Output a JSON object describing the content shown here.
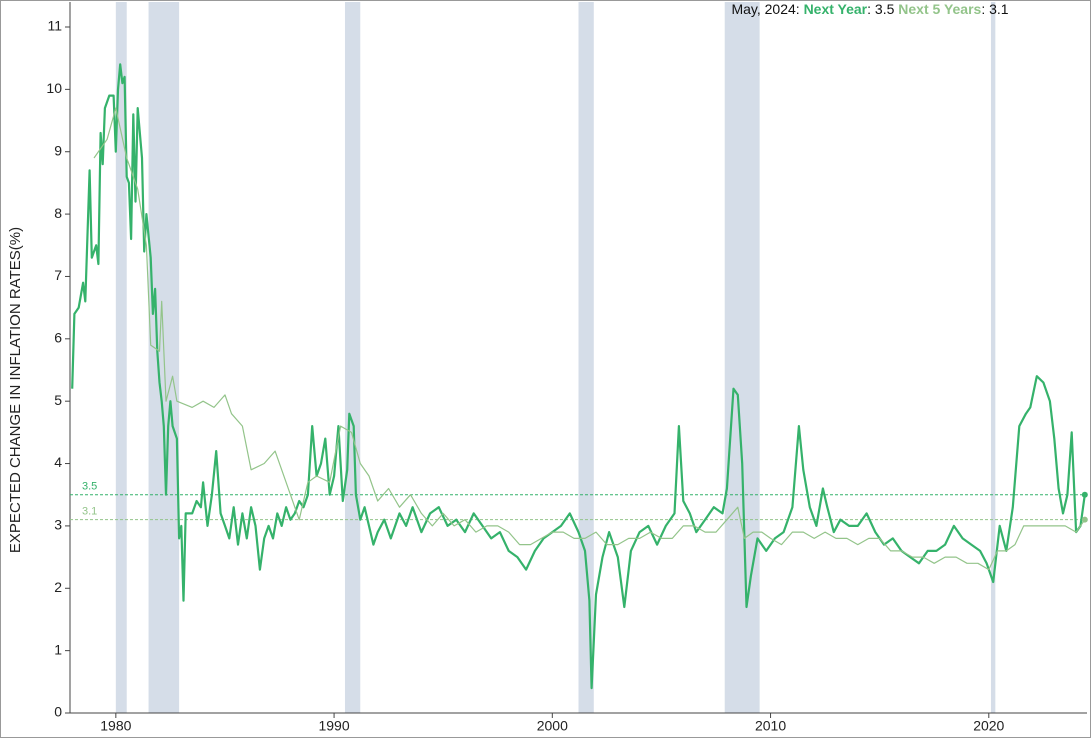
{
  "chart_data": {
    "type": "line",
    "y_label": "EXPECTED CHANGE IN INFLATION RATES(%)",
    "annotation": [
      {
        "text": "May, 2024: ",
        "color": "#111111"
      },
      {
        "text": "Next Year",
        "color": "#35b26b",
        "bold": true
      },
      {
        "text": ": 3.5 ",
        "color": "#111111"
      },
      {
        "text": "Next 5 Years",
        "color": "#93c48a",
        "bold": true
      },
      {
        "text": ": 3.1",
        "color": "#111111"
      }
    ],
    "xlim": [
      1977.9,
      2024.5
    ],
    "xticks": [
      1980,
      1990,
      2000,
      2010,
      2020
    ],
    "ylim": [
      0,
      11
    ],
    "yticks": [
      0,
      1,
      2,
      3,
      4,
      5,
      6,
      7,
      8,
      9,
      10,
      11
    ],
    "recessions": [
      [
        1980.0,
        1980.5
      ],
      [
        1981.5,
        1982.9
      ],
      [
        1990.5,
        1991.2
      ],
      [
        2001.2,
        2001.9
      ],
      [
        2007.9,
        2009.5
      ],
      [
        2020.1,
        2020.3
      ]
    ],
    "recession_color": "#d5dde8",
    "reference_lines": [
      {
        "value": 3.5,
        "color": "#35b26b"
      },
      {
        "value": 3.1,
        "color": "#93c48a"
      }
    ],
    "series": [
      {
        "name": "Next Year",
        "color": "#35b26b",
        "width": 2.2,
        "x": [
          1978.0,
          1978.1,
          1978.3,
          1978.5,
          1978.6,
          1978.8,
          1978.9,
          1979.1,
          1979.2,
          1979.3,
          1979.4,
          1979.5,
          1979.7,
          1979.9,
          1980.0,
          1980.1,
          1980.2,
          1980.3,
          1980.4,
          1980.5,
          1980.6,
          1980.7,
          1980.8,
          1980.9,
          1981.0,
          1981.2,
          1981.3,
          1981.4,
          1981.6,
          1981.7,
          1981.8,
          1981.9,
          1982.0,
          1982.1,
          1982.2,
          1982.3,
          1982.4,
          1982.5,
          1982.6,
          1982.8,
          1982.9,
          1983.0,
          1983.1,
          1983.2,
          1983.5,
          1983.7,
          1983.9,
          1984.0,
          1984.2,
          1984.4,
          1984.6,
          1984.8,
          1985.0,
          1985.2,
          1985.4,
          1985.6,
          1985.8,
          1986.0,
          1986.2,
          1986.4,
          1986.6,
          1986.8,
          1987.0,
          1987.2,
          1987.4,
          1987.6,
          1987.8,
          1988.0,
          1988.2,
          1988.4,
          1988.6,
          1988.8,
          1989.0,
          1989.2,
          1989.4,
          1989.6,
          1989.8,
          1990.0,
          1990.2,
          1990.4,
          1990.6,
          1990.7,
          1990.9,
          1991.0,
          1991.2,
          1991.4,
          1991.6,
          1991.8,
          1992.0,
          1992.3,
          1992.6,
          1993.0,
          1993.3,
          1993.6,
          1994.0,
          1994.4,
          1994.8,
          1995.2,
          1995.6,
          1996.0,
          1996.4,
          1996.8,
          1997.2,
          1997.6,
          1998.0,
          1998.4,
          1998.8,
          1999.2,
          1999.6,
          2000.0,
          2000.4,
          2000.8,
          2001.2,
          2001.5,
          2001.7,
          2001.8,
          2002.0,
          2002.3,
          2002.6,
          2003.0,
          2003.3,
          2003.6,
          2004.0,
          2004.4,
          2004.8,
          2005.2,
          2005.6,
          2005.8,
          2006.0,
          2006.3,
          2006.6,
          2007.0,
          2007.4,
          2007.8,
          2008.0,
          2008.3,
          2008.5,
          2008.7,
          2008.9,
          2009.1,
          2009.4,
          2009.8,
          2010.2,
          2010.6,
          2011.0,
          2011.3,
          2011.5,
          2011.8,
          2012.1,
          2012.4,
          2012.6,
          2012.9,
          2013.2,
          2013.6,
          2014.0,
          2014.4,
          2014.8,
          2015.2,
          2015.6,
          2016.0,
          2016.4,
          2016.8,
          2017.2,
          2017.6,
          2018.0,
          2018.4,
          2018.8,
          2019.2,
          2019.6,
          2019.9,
          2020.2,
          2020.5,
          2020.8,
          2021.1,
          2021.4,
          2021.7,
          2021.9,
          2022.2,
          2022.5,
          2022.8,
          2023.0,
          2023.2,
          2023.4,
          2023.6,
          2023.8,
          2024.0,
          2024.2,
          2024.4
        ],
        "values": [
          5.2,
          6.4,
          6.5,
          6.9,
          6.6,
          8.7,
          7.3,
          7.5,
          7.2,
          9.3,
          8.8,
          9.7,
          9.9,
          9.9,
          9.0,
          10.0,
          10.4,
          10.1,
          10.2,
          8.6,
          8.5,
          7.6,
          9.6,
          8.2,
          9.7,
          8.9,
          7.4,
          8.0,
          7.3,
          6.4,
          6.8,
          5.8,
          5.3,
          5.0,
          4.6,
          3.5,
          4.6,
          5.0,
          4.6,
          4.4,
          2.8,
          3.0,
          1.8,
          3.2,
          3.2,
          3.4,
          3.3,
          3.7,
          3.0,
          3.5,
          4.2,
          3.2,
          3.0,
          2.8,
          3.3,
          2.7,
          3.2,
          2.8,
          3.3,
          3.0,
          2.3,
          2.8,
          3.0,
          2.8,
          3.2,
          3.0,
          3.3,
          3.1,
          3.2,
          3.4,
          3.3,
          3.5,
          4.6,
          3.8,
          4.0,
          4.4,
          3.5,
          3.8,
          4.6,
          3.4,
          3.9,
          4.8,
          4.6,
          3.5,
          3.1,
          3.3,
          3.0,
          2.7,
          2.9,
          3.1,
          2.8,
          3.2,
          3.0,
          3.3,
          2.9,
          3.2,
          3.3,
          3.0,
          3.1,
          2.9,
          3.2,
          3.0,
          2.8,
          2.9,
          2.6,
          2.5,
          2.3,
          2.6,
          2.8,
          2.9,
          3.0,
          3.2,
          2.9,
          2.6,
          1.8,
          0.4,
          1.9,
          2.5,
          2.9,
          2.5,
          1.7,
          2.6,
          2.9,
          3.0,
          2.7,
          3.0,
          3.2,
          4.6,
          3.4,
          3.2,
          2.9,
          3.1,
          3.3,
          3.2,
          3.6,
          5.2,
          5.1,
          4.0,
          1.7,
          2.2,
          2.8,
          2.6,
          2.8,
          2.9,
          3.3,
          4.6,
          3.9,
          3.3,
          3.0,
          3.6,
          3.3,
          2.9,
          3.1,
          3.0,
          3.0,
          3.2,
          2.9,
          2.7,
          2.8,
          2.6,
          2.5,
          2.4,
          2.6,
          2.6,
          2.7,
          3.0,
          2.8,
          2.7,
          2.6,
          2.4,
          2.1,
          3.0,
          2.6,
          3.3,
          4.6,
          4.8,
          4.9,
          5.4,
          5.3,
          5.0,
          4.4,
          3.6,
          3.2,
          3.5,
          4.5,
          2.9,
          3.0,
          3.5
        ]
      },
      {
        "name": "Next 5 Years",
        "color": "#93c48a",
        "width": 1.2,
        "x": [
          1979.0,
          1979.6,
          1980.0,
          1980.5,
          1981.0,
          1981.4,
          1981.6,
          1982.0,
          1982.1,
          1982.3,
          1982.6,
          1982.8,
          1983.5,
          1984.0,
          1984.5,
          1985.0,
          1985.3,
          1985.8,
          1986.2,
          1986.8,
          1987.3,
          1987.8,
          1988.4,
          1988.8,
          1989.2,
          1989.8,
          1990.3,
          1990.8,
          1991.2,
          1991.6,
          1992.0,
          1992.5,
          1993.0,
          1993.5,
          1994.0,
          1994.5,
          1995.0,
          1995.5,
          1996.0,
          1996.5,
          1997.0,
          1997.5,
          1998.0,
          1998.5,
          1999.0,
          1999.5,
          2000.0,
          2000.5,
          2001.0,
          2001.5,
          2002.0,
          2002.5,
          2003.0,
          2003.5,
          2004.0,
          2004.5,
          2005.0,
          2005.5,
          2006.0,
          2006.5,
          2007.0,
          2007.5,
          2008.0,
          2008.5,
          2008.8,
          2009.2,
          2009.6,
          2010.0,
          2010.5,
          2011.0,
          2011.5,
          2012.0,
          2012.5,
          2013.0,
          2013.5,
          2014.0,
          2014.5,
          2015.0,
          2015.5,
          2016.0,
          2016.5,
          2017.0,
          2017.5,
          2018.0,
          2018.5,
          2019.0,
          2019.5,
          2020.0,
          2020.4,
          2020.8,
          2021.2,
          2021.6,
          2022.0,
          2022.5,
          2023.0,
          2023.5,
          2024.0,
          2024.4
        ],
        "values": [
          8.9,
          9.2,
          9.7,
          8.9,
          8.4,
          7.5,
          5.9,
          5.8,
          6.6,
          5.0,
          5.4,
          5.0,
          4.9,
          5.0,
          4.9,
          5.1,
          4.8,
          4.6,
          3.9,
          4.0,
          4.2,
          3.7,
          3.1,
          3.7,
          3.8,
          3.7,
          4.6,
          4.5,
          4.0,
          3.8,
          3.4,
          3.6,
          3.3,
          3.5,
          3.2,
          3.0,
          3.2,
          3.0,
          3.1,
          2.9,
          3.0,
          3.0,
          2.9,
          2.7,
          2.7,
          2.8,
          2.9,
          2.9,
          2.8,
          2.8,
          2.9,
          2.7,
          2.7,
          2.8,
          2.8,
          2.9,
          2.8,
          2.8,
          3.0,
          3.0,
          2.9,
          2.9,
          3.1,
          3.3,
          2.8,
          2.9,
          2.9,
          2.8,
          2.7,
          2.9,
          2.9,
          2.8,
          2.9,
          2.8,
          2.8,
          2.7,
          2.8,
          2.8,
          2.6,
          2.6,
          2.5,
          2.5,
          2.4,
          2.5,
          2.5,
          2.4,
          2.4,
          2.3,
          2.6,
          2.6,
          2.7,
          3.0,
          3.0,
          3.0,
          3.0,
          3.0,
          2.9,
          3.1
        ]
      }
    ]
  }
}
